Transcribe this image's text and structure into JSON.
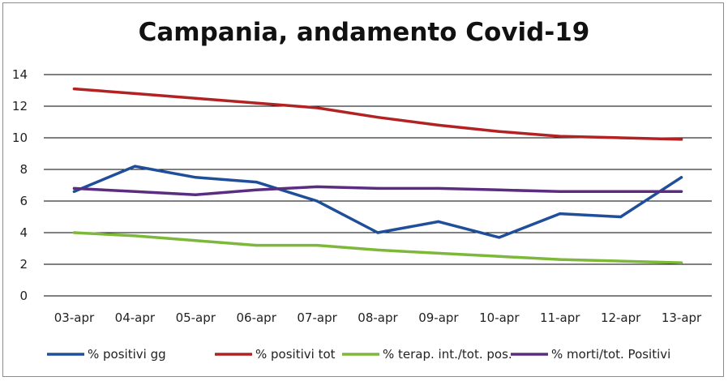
{
  "chart_data": {
    "type": "line",
    "title": "Campania, andamento Covid-19",
    "xlabel": "",
    "ylabel": "",
    "categories": [
      "03-apr",
      "04-apr",
      "05-apr",
      "06-apr",
      "07-apr",
      "08-apr",
      "09-apr",
      "10-apr",
      "11-apr",
      "12-apr",
      "13-apr"
    ],
    "ylim": [
      0,
      14
    ],
    "yticks": [
      0,
      2,
      4,
      6,
      8,
      10,
      12,
      14
    ],
    "grid": true,
    "legend_position": "bottom",
    "series": [
      {
        "name": "% positivi gg",
        "color": "#1f4e9a",
        "values": [
          6.6,
          8.2,
          7.5,
          7.2,
          6.0,
          4.0,
          4.7,
          3.7,
          5.2,
          5.0,
          7.5
        ]
      },
      {
        "name": "% positivi tot",
        "color": "#b22222",
        "values": [
          13.1,
          12.8,
          12.5,
          12.2,
          11.9,
          11.3,
          10.8,
          10.4,
          10.1,
          10.0,
          9.9
        ]
      },
      {
        "name": "% terap. int./tot. pos.",
        "color": "#7db83a",
        "values": [
          4.0,
          3.8,
          3.5,
          3.2,
          3.2,
          2.9,
          2.7,
          2.5,
          2.3,
          2.2,
          2.1
        ]
      },
      {
        "name": "% morti/tot. Positivi",
        "color": "#5b2d80",
        "values": [
          6.8,
          6.6,
          6.4,
          6.7,
          6.9,
          6.8,
          6.8,
          6.7,
          6.6,
          6.6,
          6.6
        ]
      }
    ]
  }
}
